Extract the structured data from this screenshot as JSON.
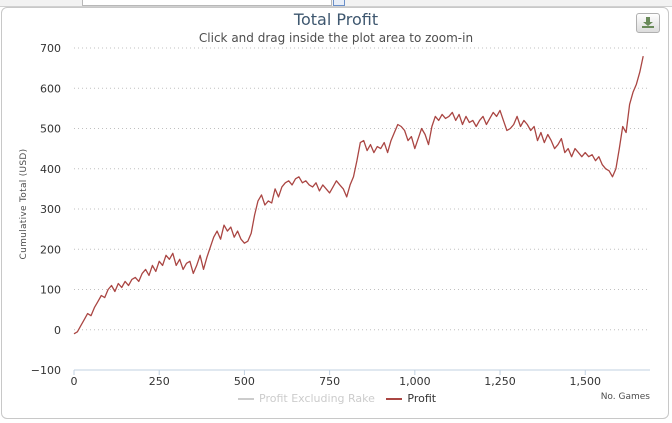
{
  "header": {
    "title": "Total Profit",
    "subtitle": "Click and drag inside the plot area to zoom-in",
    "export_icon": "download-icon"
  },
  "chart_data": {
    "type": "line",
    "title": "Total Profit",
    "subtitle": "Click and drag inside the plot area to zoom-in",
    "xlabel": "No. Games",
    "ylabel": "Cumulative Total (USD)",
    "xlim": [
      0,
      1690
    ],
    "ylim": [
      -100,
      700
    ],
    "xticks": [
      0,
      250,
      500,
      750,
      1000,
      1250,
      1500
    ],
    "xtick_labels": [
      "0",
      "250",
      "500",
      "750",
      "1,000",
      "1,250",
      "1,500"
    ],
    "yticks": [
      -100,
      0,
      100,
      200,
      300,
      400,
      500,
      600,
      700
    ],
    "ytick_labels": [
      "−100",
      "0",
      "100",
      "200",
      "300",
      "400",
      "500",
      "600",
      "700"
    ],
    "grid": "horizontal dotted",
    "legend": "bottom-center",
    "series": [
      {
        "name": "Profit Excluding Rake",
        "visible": false,
        "color": "#cccccc",
        "x": [],
        "y": []
      },
      {
        "name": "Profit",
        "visible": true,
        "color": "#aa4643",
        "x": [
          0,
          10,
          20,
          30,
          40,
          50,
          60,
          70,
          80,
          90,
          100,
          110,
          120,
          130,
          140,
          150,
          160,
          170,
          180,
          190,
          200,
          210,
          220,
          230,
          240,
          250,
          260,
          270,
          280,
          290,
          300,
          310,
          320,
          330,
          340,
          350,
          360,
          370,
          380,
          390,
          400,
          410,
          420,
          430,
          440,
          450,
          460,
          470,
          480,
          490,
          500,
          510,
          520,
          530,
          540,
          550,
          560,
          570,
          580,
          590,
          600,
          610,
          620,
          630,
          640,
          650,
          660,
          670,
          680,
          690,
          700,
          710,
          720,
          730,
          740,
          750,
          760,
          770,
          780,
          790,
          800,
          810,
          820,
          830,
          840,
          850,
          860,
          870,
          880,
          890,
          900,
          910,
          920,
          930,
          940,
          950,
          960,
          970,
          980,
          990,
          1000,
          1010,
          1020,
          1030,
          1040,
          1050,
          1060,
          1070,
          1080,
          1090,
          1100,
          1110,
          1120,
          1130,
          1140,
          1150,
          1160,
          1170,
          1180,
          1190,
          1200,
          1210,
          1220,
          1230,
          1240,
          1250,
          1260,
          1270,
          1280,
          1290,
          1300,
          1310,
          1320,
          1330,
          1340,
          1350,
          1360,
          1370,
          1380,
          1390,
          1400,
          1410,
          1420,
          1430,
          1440,
          1450,
          1460,
          1470,
          1480,
          1490,
          1500,
          1510,
          1520,
          1530,
          1540,
          1550,
          1560,
          1570,
          1580,
          1590,
          1600,
          1610,
          1620,
          1630,
          1640,
          1650,
          1660,
          1670
        ],
        "y": [
          -10,
          -5,
          10,
          25,
          40,
          35,
          55,
          70,
          85,
          80,
          100,
          110,
          95,
          115,
          105,
          120,
          110,
          125,
          130,
          120,
          140,
          150,
          135,
          160,
          145,
          170,
          160,
          185,
          175,
          190,
          160,
          175,
          150,
          165,
          170,
          140,
          160,
          185,
          150,
          180,
          205,
          230,
          245,
          225,
          260,
          245,
          255,
          230,
          245,
          225,
          215,
          220,
          240,
          285,
          320,
          335,
          310,
          320,
          315,
          350,
          330,
          355,
          365,
          370,
          360,
          375,
          380,
          365,
          370,
          360,
          355,
          365,
          345,
          360,
          350,
          340,
          355,
          370,
          360,
          350,
          330,
          360,
          380,
          420,
          465,
          470,
          445,
          460,
          440,
          455,
          450,
          465,
          440,
          470,
          490,
          510,
          505,
          495,
          470,
          480,
          450,
          475,
          500,
          485,
          460,
          505,
          530,
          520,
          535,
          525,
          530,
          540,
          520,
          535,
          510,
          530,
          515,
          520,
          505,
          520,
          530,
          510,
          525,
          540,
          530,
          545,
          520,
          495,
          500,
          510,
          530,
          505,
          520,
          510,
          495,
          505,
          470,
          490,
          465,
          485,
          470,
          450,
          460,
          475,
          440,
          450,
          430,
          450,
          440,
          430,
          440,
          430,
          435,
          420,
          430,
          410,
          400,
          395,
          380,
          400,
          450,
          505,
          490,
          560,
          590,
          610,
          640,
          680
        ]
      }
    ]
  }
}
